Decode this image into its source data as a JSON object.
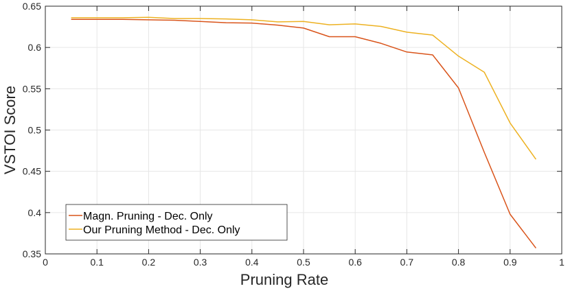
{
  "chart_data": {
    "type": "line",
    "title": "",
    "xlabel": "Pruning Rate",
    "ylabel": "VSTOI Score",
    "xlim": [
      0,
      1
    ],
    "ylim": [
      0.35,
      0.65
    ],
    "xticks": [
      0,
      0.1,
      0.2,
      0.3,
      0.4,
      0.5,
      0.6,
      0.7,
      0.8,
      0.9,
      1
    ],
    "xtick_labels": [
      "0",
      "0.1",
      "0.2",
      "0.3",
      "0.4",
      "0.5",
      "0.6",
      "0.7",
      "0.8",
      "0.9",
      "1"
    ],
    "yticks": [
      0.35,
      0.4,
      0.45,
      0.5,
      0.55,
      0.6,
      0.65
    ],
    "ytick_labels": [
      "0.35",
      "0.4",
      "0.45",
      "0.5",
      "0.55",
      "0.6",
      "0.65"
    ],
    "grid": true,
    "legend_position": "bottom-left",
    "x": [
      0.05,
      0.1,
      0.15,
      0.2,
      0.25,
      0.3,
      0.35,
      0.4,
      0.45,
      0.5,
      0.55,
      0.6,
      0.65,
      0.7,
      0.75,
      0.8,
      0.85,
      0.9,
      0.95
    ],
    "series": [
      {
        "name": "Magn. Pruning - Dec. Only",
        "color": "#d95319",
        "values": [
          0.634,
          0.634,
          0.634,
          0.6335,
          0.633,
          0.6315,
          0.63,
          0.6295,
          0.627,
          0.6235,
          0.613,
          0.613,
          0.605,
          0.5945,
          0.591,
          0.551,
          0.473,
          0.398,
          0.357
        ]
      },
      {
        "name": "Our Pruning Method - Dec. Only",
        "color": "#edb120",
        "values": [
          0.636,
          0.636,
          0.636,
          0.6365,
          0.635,
          0.635,
          0.6345,
          0.6335,
          0.631,
          0.6315,
          0.6275,
          0.6285,
          0.6255,
          0.6185,
          0.615,
          0.5895,
          0.57,
          0.5085,
          0.4645
        ]
      }
    ]
  }
}
